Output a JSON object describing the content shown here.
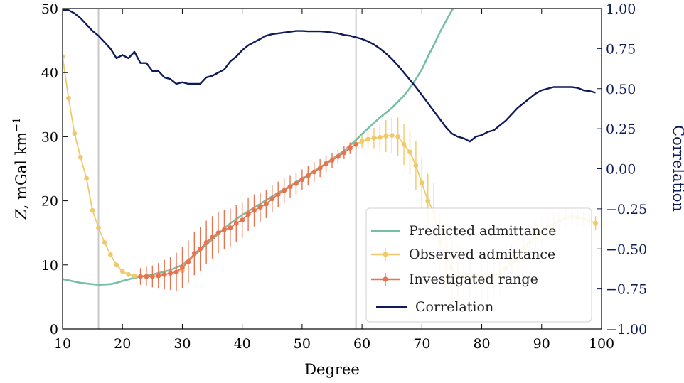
{
  "chart_data": {
    "type": "line",
    "xlabel": "Degree",
    "ylabel_left_prefix": "Z",
    "ylabel_left_unit": ", mGal km",
    "ylabel_left_exp": "−1",
    "ylabel_right": "Correlation",
    "xlim": [
      10,
      100
    ],
    "ylim_left": [
      0,
      50
    ],
    "ylim_right": [
      -1.0,
      1.0
    ],
    "x_ticks": [
      "10",
      "20",
      "30",
      "40",
      "50",
      "60",
      "70",
      "80",
      "90",
      "100"
    ],
    "y_left_ticks": [
      "0",
      "10",
      "20",
      "30",
      "40",
      "50"
    ],
    "y_right_ticks": [
      "−1.00",
      "−0.75",
      "−0.50",
      "−0.25",
      "0.00",
      "0.25",
      "0.50",
      "0.75",
      "1.00"
    ],
    "vertical_lines": [
      16,
      59
    ],
    "legend_position": "lower-right",
    "colors": {
      "predicted": "#74bfa6",
      "observed": "#f0c96a",
      "investigated": "#e8744f",
      "correlation": "#0e1a5a",
      "vline": "#c8c8c8"
    },
    "series": [
      {
        "name": "Predicted admittance",
        "key": "predicted",
        "axis": "left",
        "x": [
          10,
          11,
          12,
          13,
          14,
          15,
          16,
          17,
          18,
          19,
          20,
          22,
          25,
          28,
          30,
          32,
          35,
          38,
          40,
          43,
          45,
          48,
          50,
          53,
          55,
          57,
          59,
          61,
          63,
          65,
          67,
          68,
          69,
          70,
          71,
          72,
          73,
          74,
          75,
          76
        ],
        "values": [
          7.8,
          7.6,
          7.4,
          7.2,
          7.1,
          7.0,
          6.9,
          6.95,
          7.0,
          7.2,
          7.5,
          8.0,
          8.5,
          9.2,
          10.0,
          11.5,
          14.0,
          16.5,
          17.8,
          19.5,
          20.7,
          22.3,
          23.5,
          25.2,
          26.5,
          27.8,
          29.5,
          31.3,
          33.0,
          34.5,
          36.4,
          37.6,
          39.0,
          40.5,
          42.5,
          44.3,
          46.3,
          48.0,
          49.7,
          51.0
        ]
      },
      {
        "name": "Observed admittance",
        "key": "observed",
        "axis": "left",
        "x": [
          10,
          11,
          12,
          13,
          14,
          15,
          16,
          17,
          18,
          19,
          20,
          21,
          22,
          23,
          24,
          25,
          26,
          27,
          28,
          29,
          30,
          59,
          60,
          61,
          62,
          63,
          64,
          65,
          66,
          67,
          68,
          69,
          70,
          71,
          72,
          73,
          74,
          75,
          76,
          77,
          78,
          79,
          80,
          81,
          82,
          83,
          84,
          85,
          86,
          87,
          88,
          89,
          90,
          91,
          92,
          93,
          94,
          95,
          96,
          97,
          98,
          99
        ],
        "values": [
          42.5,
          36.0,
          30.5,
          26.8,
          23.5,
          18.5,
          15.8,
          13.5,
          11.6,
          10.0,
          9.0,
          8.5,
          8.3,
          8.2,
          8.2,
          8.2,
          8.3,
          8.5,
          8.7,
          8.9,
          9.1,
          28.8,
          29.3,
          29.6,
          29.8,
          29.9,
          30.1,
          30.2,
          30.0,
          28.8,
          27.6,
          25.5,
          22.8,
          20.0,
          18.3,
          13.6,
          11.3,
          9.5,
          8.5,
          8.3,
          8.3,
          8.2,
          8.2,
          8.3,
          8.4,
          8.8,
          9.5,
          10.3,
          11.2,
          12.5,
          13.6,
          14.4,
          15.2,
          15.8,
          16.4,
          16.9,
          17.3,
          17.5,
          17.4,
          17.2,
          16.9,
          16.5
        ],
        "errors": [
          0,
          0,
          0,
          0,
          0,
          0,
          0,
          0,
          0,
          0,
          0,
          0,
          0,
          0,
          0,
          0,
          0,
          0,
          0,
          0,
          0,
          0.6,
          1.0,
          1.3,
          1.6,
          2.0,
          2.5,
          2.8,
          3.0,
          3.2,
          3.5,
          3.8,
          4.0,
          4.2,
          4.5,
          4.6,
          4.8,
          4.8,
          4.6,
          4.4,
          4.3,
          4.2,
          4.0,
          3.9,
          3.7,
          3.5,
          3.3,
          3.1,
          3.0,
          2.8,
          2.6,
          2.4,
          2.2,
          2.0,
          1.8,
          1.6,
          1.4,
          1.3,
          1.2,
          1.2,
          1.1,
          1.1
        ]
      },
      {
        "name": "Investigated range",
        "key": "investigated",
        "axis": "left",
        "x": [
          23,
          24,
          25,
          26,
          27,
          28,
          29,
          30,
          31,
          32,
          33,
          34,
          35,
          36,
          37,
          38,
          39,
          40,
          41,
          42,
          43,
          44,
          45,
          46,
          47,
          48,
          49,
          50,
          51,
          52,
          53,
          54,
          55,
          56,
          57,
          58,
          59
        ],
        "values": [
          8.2,
          8.2,
          8.2,
          8.3,
          8.5,
          8.7,
          8.9,
          9.6,
          10.5,
          11.8,
          12.5,
          13.5,
          14.3,
          15.0,
          15.5,
          15.8,
          16.5,
          17.0,
          17.9,
          18.5,
          19.0,
          19.5,
          20.3,
          21.0,
          21.6,
          22.2,
          22.7,
          23.3,
          23.9,
          24.5,
          25.1,
          25.8,
          26.3,
          26.9,
          27.5,
          28.2,
          28.8
        ],
        "errors": [
          1.3,
          1.5,
          1.7,
          2.0,
          2.3,
          2.6,
          3.0,
          3.2,
          3.3,
          3.4,
          3.4,
          3.4,
          3.3,
          3.2,
          3.1,
          3.0,
          2.9,
          2.8,
          2.6,
          2.5,
          2.3,
          2.2,
          2.1,
          2.0,
          1.9,
          1.8,
          1.7,
          1.6,
          1.5,
          1.5,
          1.4,
          1.3,
          1.2,
          1.1,
          1.0,
          0.9,
          0.8
        ]
      },
      {
        "name": "Correlation",
        "key": "correlation",
        "axis": "right",
        "x": [
          10,
          11,
          12,
          13,
          14,
          15,
          16,
          17,
          18,
          19,
          20,
          21,
          22,
          23,
          24,
          25,
          26,
          27,
          28,
          29,
          30,
          31,
          32,
          33,
          34,
          35,
          36,
          37,
          38,
          39,
          40,
          41,
          42,
          43,
          44,
          45,
          46,
          47,
          48,
          49,
          50,
          51,
          52,
          53,
          54,
          55,
          56,
          57,
          58,
          59,
          60,
          61,
          62,
          63,
          64,
          65,
          66,
          67,
          68,
          69,
          70,
          71,
          72,
          73,
          74,
          75,
          76,
          77,
          78,
          79,
          80,
          81,
          82,
          83,
          84,
          85,
          86,
          87,
          88,
          89,
          90,
          91,
          92,
          93,
          94,
          95,
          96,
          97,
          98,
          99
        ],
        "values": [
          0.99,
          0.99,
          0.97,
          0.94,
          0.9,
          0.86,
          0.83,
          0.79,
          0.75,
          0.69,
          0.71,
          0.69,
          0.73,
          0.66,
          0.66,
          0.61,
          0.61,
          0.57,
          0.56,
          0.53,
          0.54,
          0.53,
          0.53,
          0.53,
          0.57,
          0.58,
          0.6,
          0.62,
          0.67,
          0.7,
          0.74,
          0.77,
          0.79,
          0.81,
          0.83,
          0.84,
          0.845,
          0.85,
          0.855,
          0.86,
          0.86,
          0.858,
          0.858,
          0.858,
          0.855,
          0.85,
          0.845,
          0.835,
          0.83,
          0.82,
          0.81,
          0.795,
          0.775,
          0.75,
          0.72,
          0.685,
          0.645,
          0.6,
          0.555,
          0.51,
          0.46,
          0.41,
          0.36,
          0.31,
          0.26,
          0.22,
          0.2,
          0.19,
          0.17,
          0.2,
          0.21,
          0.23,
          0.24,
          0.27,
          0.3,
          0.34,
          0.38,
          0.41,
          0.44,
          0.47,
          0.49,
          0.5,
          0.51,
          0.51,
          0.51,
          0.51,
          0.505,
          0.49,
          0.485,
          0.475
        ]
      }
    ]
  }
}
